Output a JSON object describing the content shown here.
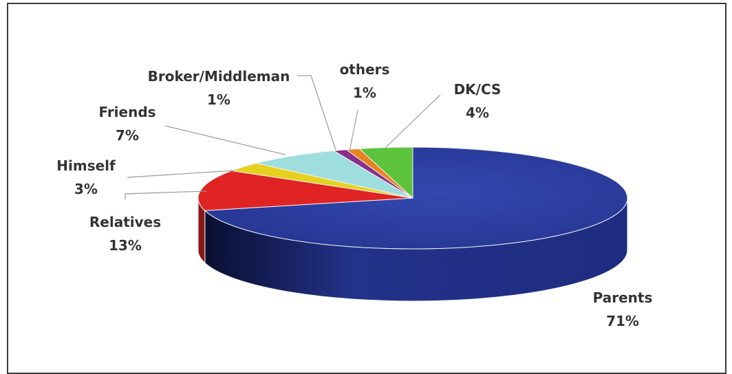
{
  "chart_data": {
    "type": "pie",
    "style": "3d",
    "slices": [
      {
        "label": "Parents",
        "value": 71,
        "value_label": "71%",
        "color": "#2b3d9e"
      },
      {
        "label": "Relatives",
        "value": 13,
        "value_label": "13%",
        "color": "#e02424"
      },
      {
        "label": "Himself",
        "value": 3,
        "value_label": "3%",
        "color": "#e6d21e"
      },
      {
        "label": "Friends",
        "value": 7,
        "value_label": "7%",
        "color": "#9fdede"
      },
      {
        "label": "Broker/Middleman",
        "value": 1,
        "value_label": "1%",
        "color": "#8a2f8a"
      },
      {
        "label": "others",
        "value": 1,
        "value_label": "1%",
        "color": "#e8821e"
      },
      {
        "label": "DK/CS",
        "value": 4,
        "value_label": "4%",
        "color": "#5cc43c"
      }
    ]
  }
}
